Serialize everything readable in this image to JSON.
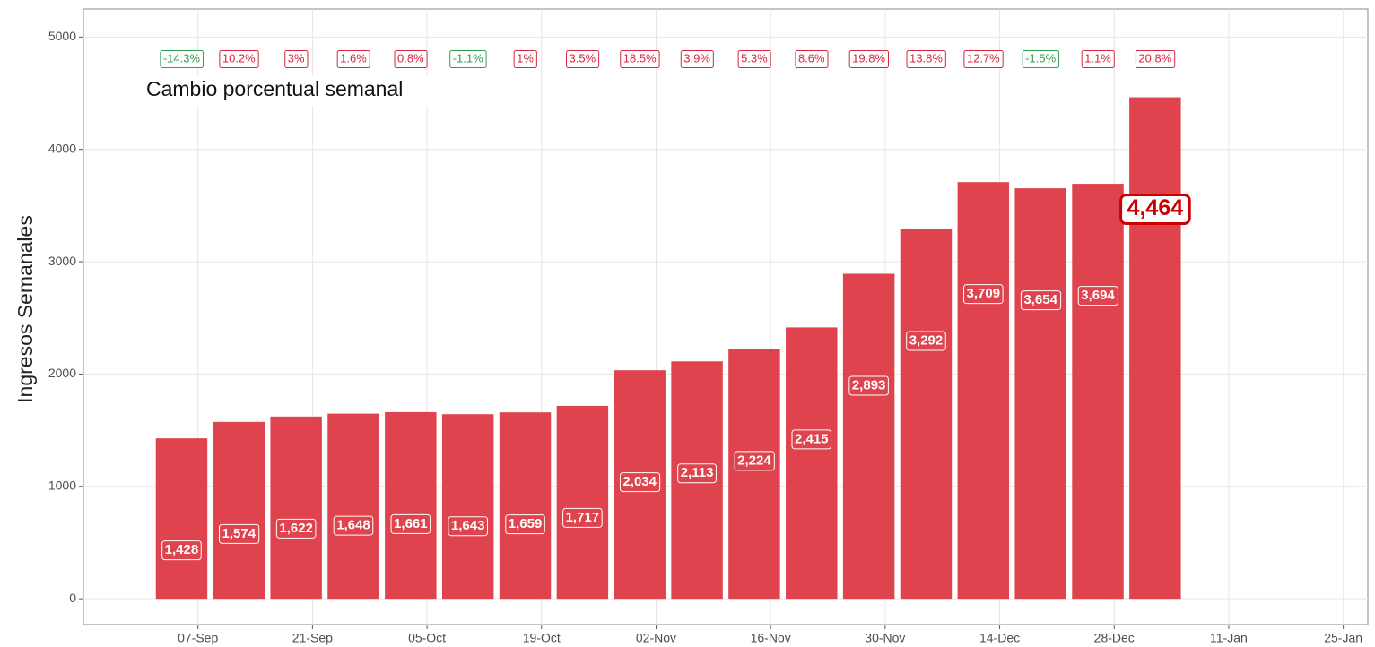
{
  "chart_data": {
    "type": "bar",
    "y_label": "Ingresos Semanales",
    "annotation": "Cambio porcentual semanal",
    "x": [
      "05-Sep",
      "12-Sep",
      "19-Sep",
      "26-Sep",
      "03-Oct",
      "10-Oct",
      "17-Oct",
      "24-Oct",
      "31-Oct",
      "07-Nov",
      "14-Nov",
      "21-Nov",
      "28-Nov",
      "05-Dec",
      "12-Dec",
      "19-Dec",
      "26-Dec",
      "02-Jan"
    ],
    "values": [
      1428,
      1574,
      1622,
      1648,
      1661,
      1643,
      1659,
      1717,
      2034,
      2113,
      2224,
      2415,
      2893,
      3292,
      3709,
      3654,
      3694,
      4464
    ],
    "value_labels": [
      "1,428",
      "1,574",
      "1,622",
      "1,648",
      "1,661",
      "1,643",
      "1,659",
      "1,717",
      "2,034",
      "2,113",
      "2,224",
      "2,415",
      "2,893",
      "3,292",
      "3,709",
      "3,654",
      "3,694",
      "4,464"
    ],
    "color": "#dd3a44",
    "highlight_color": "#cc0000",
    "change": {
      "values": [
        -14.3,
        10.2,
        3,
        1.6,
        0.8,
        -1.1,
        1,
        3.5,
        18.5,
        3.9,
        5.3,
        8.6,
        19.8,
        13.8,
        12.7,
        -1.5,
        1.1,
        20.8
      ],
      "value_labels": [
        "-14.3%",
        "10.2%",
        "3%",
        "1.6%",
        "0.8%",
        "-1.1%",
        "1%",
        "3.5%",
        "18.5%",
        "3.9%",
        "5.3%",
        "8.6%",
        "19.8%",
        "13.8%",
        "12.7%",
        "-1.5%",
        "1.1%",
        "20.8%"
      ],
      "positive_color": "#d7263d",
      "negative_color": "#2e9e4f"
    },
    "xlim": [
      "24-Aug",
      "28-Jan"
    ],
    "xticks": [
      "07-Sep",
      "21-Sep",
      "05-Oct",
      "19-Oct",
      "02-Nov",
      "16-Nov",
      "30-Nov",
      "14-Dec",
      "28-Dec",
      "11-Jan",
      "25-Jan"
    ],
    "ylim": [
      -230,
      5250
    ],
    "yticks": [
      0,
      1000,
      2000,
      3000,
      4000,
      5000
    ],
    "grid": true
  }
}
